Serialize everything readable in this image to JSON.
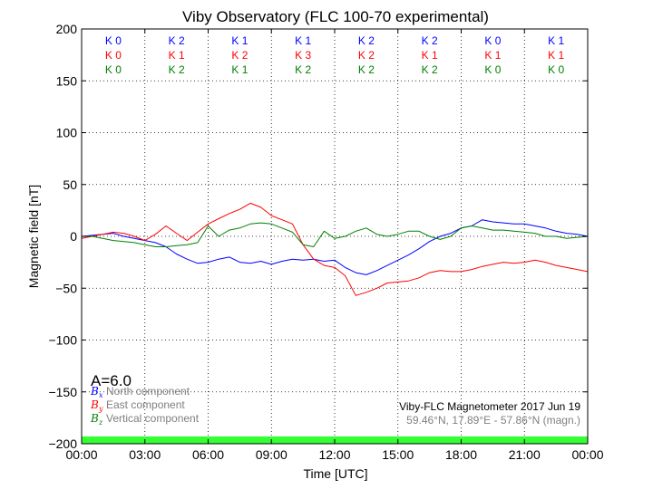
{
  "chart_data": {
    "type": "line",
    "title": "Viby Observatory (FLC 100-70 experimental)",
    "xlabel": "Time [UTC]",
    "ylabel": "Magnetic field [nT]",
    "xlim": [
      0,
      24
    ],
    "ylim": [
      -200,
      200
    ],
    "x_ticks": [
      {
        "v": 0,
        "label": "00:00"
      },
      {
        "v": 3,
        "label": "03:00"
      },
      {
        "v": 6,
        "label": "06:00"
      },
      {
        "v": 9,
        "label": "09:00"
      },
      {
        "v": 12,
        "label": "12:00"
      },
      {
        "v": 15,
        "label": "15:00"
      },
      {
        "v": 18,
        "label": "18:00"
      },
      {
        "v": 21,
        "label": "21:00"
      },
      {
        "v": 24,
        "label": "00:00"
      }
    ],
    "y_ticks": [
      {
        "v": 200,
        "label": "200"
      },
      {
        "v": 150,
        "label": "150"
      },
      {
        "v": 100,
        "label": "100"
      },
      {
        "v": 50,
        "label": "50"
      },
      {
        "v": 0,
        "label": "0"
      },
      {
        "v": -50,
        "label": "−50"
      },
      {
        "v": -100,
        "label": "−100"
      },
      {
        "v": -150,
        "label": "−150"
      },
      {
        "v": -200,
        "label": "−200"
      }
    ],
    "grid": true,
    "series": [
      {
        "sym": "B",
        "sub": "x",
        "name": "North component",
        "color": "#0000ff",
        "x": [
          0,
          0.5,
          1,
          1.5,
          2,
          2.5,
          3,
          3.5,
          4,
          4.5,
          5,
          5.5,
          6,
          6.5,
          7,
          7.5,
          8,
          8.5,
          9,
          9.5,
          10,
          10.5,
          11,
          11.5,
          12,
          12.5,
          13,
          13.5,
          14,
          14.5,
          15,
          15.5,
          16,
          16.5,
          17,
          17.5,
          18,
          18.5,
          19,
          19.5,
          20,
          20.5,
          21,
          21.5,
          22,
          22.5,
          23,
          23.5,
          24
        ],
        "y": [
          0,
          1,
          2,
          3,
          0,
          -2,
          -4,
          -6,
          -10,
          -17,
          -22,
          -26,
          -25,
          -22,
          -20,
          -25,
          -26,
          -24,
          -27,
          -24,
          -22,
          -23,
          -22,
          -24,
          -23,
          -30,
          -35,
          -37,
          -33,
          -28,
          -23,
          -18,
          -12,
          -5,
          0,
          3,
          8,
          10,
          16,
          14,
          13,
          12,
          12,
          10,
          8,
          5,
          3,
          2,
          0
        ]
      },
      {
        "sym": "B",
        "sub": "y",
        "name": "East component",
        "color": "#ff0000",
        "x": [
          0,
          0.5,
          1,
          1.5,
          2,
          2.5,
          3,
          3.5,
          4,
          4.5,
          5,
          5.5,
          6,
          6.5,
          7,
          7.5,
          8,
          8.5,
          9,
          9.5,
          10,
          10.5,
          11,
          11.5,
          12,
          12.5,
          13,
          13.5,
          14,
          14.5,
          15,
          15.5,
          16,
          16.5,
          17,
          17.5,
          18,
          18.5,
          19,
          19.5,
          20,
          20.5,
          21,
          21.5,
          22,
          22.5,
          23,
          23.5,
          24
        ],
        "y": [
          -2,
          0,
          2,
          4,
          3,
          0,
          -4,
          2,
          10,
          3,
          -4,
          4,
          12,
          17,
          22,
          26,
          32,
          28,
          20,
          16,
          12,
          -8,
          -22,
          -28,
          -30,
          -38,
          -57,
          -54,
          -50,
          -45,
          -44,
          -43,
          -40,
          -35,
          -33,
          -34,
          -34,
          -32,
          -29,
          -27,
          -25,
          -26,
          -25,
          -23,
          -25,
          -28,
          -30,
          -32,
          -34
        ]
      },
      {
        "sym": "B",
        "sub": "z",
        "name": "Vertical component",
        "color": "#008000",
        "x": [
          0,
          0.5,
          1,
          1.5,
          2,
          2.5,
          3,
          3.5,
          4,
          4.5,
          5,
          5.5,
          6,
          6.5,
          7,
          7.5,
          8,
          8.5,
          9,
          9.5,
          10,
          10.5,
          11,
          11.5,
          12,
          12.5,
          13,
          13.5,
          14,
          14.5,
          15,
          15.5,
          16,
          16.5,
          17,
          17.5,
          18,
          18.5,
          19,
          19.5,
          20,
          20.5,
          21,
          21.5,
          22,
          22.5,
          23,
          23.5,
          24
        ],
        "y": [
          0,
          0,
          -2,
          -4,
          -5,
          -6,
          -8,
          -10,
          -10,
          -9,
          -8,
          -6,
          10,
          0,
          6,
          8,
          12,
          13,
          12,
          8,
          4,
          -8,
          -10,
          5,
          -2,
          0,
          5,
          8,
          2,
          0,
          2,
          5,
          5,
          0,
          -3,
          0,
          8,
          10,
          8,
          6,
          6,
          5,
          4,
          3,
          0,
          0,
          -2,
          -1,
          0
        ]
      }
    ],
    "k_rows": [
      {
        "color": "#0000ff",
        "labels": [
          "K 0",
          "K 2",
          "K 1",
          "K 1",
          "K 2",
          "K 2",
          "K 0",
          "K 1"
        ]
      },
      {
        "color": "#ff0000",
        "labels": [
          "K 0",
          "K 1",
          "K 2",
          "K 3",
          "K 2",
          "K 1",
          "K 1",
          "K 1"
        ]
      },
      {
        "color": "#008000",
        "labels": [
          "K 0",
          "K 2",
          "K 1",
          "K 2",
          "K 2",
          "K 2",
          "K 0",
          "K 0"
        ]
      }
    ],
    "a_index": "A=6.0",
    "info_line1": "Viby-FLC Magnetometer 2017 Jun 19",
    "info_line2": "59.46°N, 17.89°E - 57.86°N (magn.)",
    "status_bar_color": "#33ff33",
    "legend_position": "lower-left"
  }
}
